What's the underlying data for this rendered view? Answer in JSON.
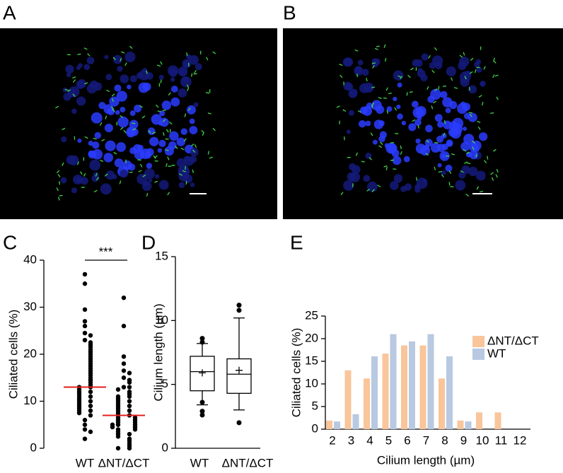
{
  "images": [
    {
      "label": "A"
    },
    {
      "label": "B"
    }
  ],
  "chart_data": [
    {
      "type": "strip",
      "label": "C",
      "y_label": "Ciliated cells (%)",
      "annotation": "***",
      "categories": [
        "WT",
        "ΔNT/ΔCT"
      ],
      "mean_color": "#e0201b",
      "color": "#000000",
      "values": [
        [
          37,
          35,
          29.5,
          27,
          26,
          24.5,
          24,
          23,
          22.5,
          22,
          21.5,
          21,
          20.5,
          20,
          19.5,
          19,
          18.5,
          18,
          17.5,
          17,
          16.5,
          16,
          15.5,
          15,
          14.5,
          14,
          13.5,
          13,
          13,
          12.5,
          12,
          12,
          11.5,
          11,
          11,
          10.5,
          10,
          10,
          9.5,
          9,
          9,
          8.5,
          8,
          8,
          7.5,
          7,
          6,
          5,
          4,
          3.5,
          2
        ],
        [
          32,
          26,
          19.5,
          18,
          16.5,
          16,
          15,
          14.5,
          14,
          13,
          13,
          12.5,
          12,
          11.5,
          11,
          11,
          10.5,
          10,
          10,
          9.5,
          9,
          9,
          8.5,
          8,
          8,
          7.5,
          7,
          7,
          6.5,
          6.5,
          6,
          6,
          5.5,
          5.5,
          5,
          5,
          5,
          4.5,
          4.5,
          4,
          4,
          3.5,
          3,
          3,
          2.5,
          2,
          1.5,
          1,
          0.5,
          0,
          0
        ]
      ],
      "means": [
        13,
        7
      ],
      "ylim": [
        0,
        40
      ],
      "yticks": [
        0,
        10,
        20,
        30,
        40
      ]
    },
    {
      "type": "box",
      "label": "D",
      "y_label": "Cilium length (µm)",
      "categories": [
        "WT",
        "ΔNT/ΔCT"
      ],
      "boxes": [
        {
          "whislo": 3.4,
          "q1": 4.5,
          "med": 6.0,
          "mean": 5.9,
          "q3": 7.2,
          "whishi": 8.2,
          "fliers": [
            8.6,
            8.3,
            3.6,
            2.9,
            2.6
          ]
        },
        {
          "whislo": 3.0,
          "q1": 4.3,
          "med": 5.8,
          "mean": 6.1,
          "q3": 7.0,
          "whishi": 10.2,
          "fliers": [
            11.2,
            10.8,
            2.0
          ]
        }
      ],
      "ylim": [
        0,
        15
      ],
      "yticks": [
        0,
        5,
        10,
        15
      ]
    },
    {
      "type": "grouped_bar",
      "label": "E",
      "x_label": "Cilium length (µm)",
      "y_label": "Ciliated cells (%)",
      "categories": [
        "2",
        "3",
        "4",
        "5",
        "6",
        "7",
        "8",
        "9",
        "10",
        "11",
        "12"
      ],
      "series": [
        {
          "name": "ΔNT/ΔCT",
          "color": "#f9c59a",
          "values": [
            1.9,
            13,
            11.2,
            16.7,
            18.5,
            18.5,
            11.2,
            1.9,
            3.7,
            3.7,
            0
          ]
        },
        {
          "name": "WT",
          "color": "#b8c9e1",
          "values": [
            1.7,
            3.3,
            16.1,
            21,
            19.4,
            21,
            16.1,
            1.7,
            0,
            0,
            0
          ]
        }
      ],
      "ylim": [
        0,
        25
      ],
      "yticks": [
        0,
        5,
        10,
        15,
        20,
        25
      ],
      "legend": "upper right"
    }
  ]
}
